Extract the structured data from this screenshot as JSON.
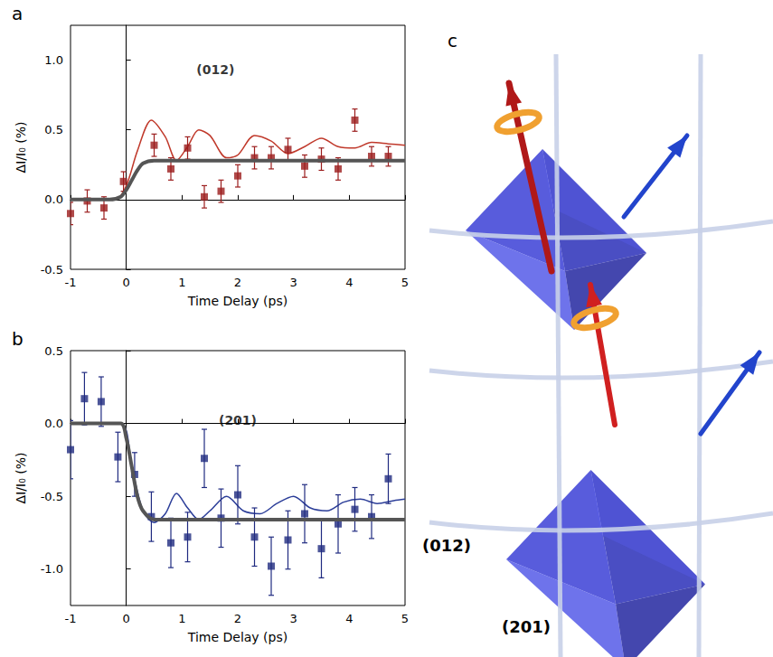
{
  "chart_data": [
    {
      "type": "scatter",
      "panel": "a",
      "x_label": "Time Delay (ps)",
      "y_label": "ΔI/I₀ (%)",
      "annotations": [
        {
          "text": "(012)",
          "x": 1.6,
          "y": 0.93
        }
      ],
      "xlim": [
        -1,
        5
      ],
      "xticks": [
        -1,
        0,
        1,
        2,
        3,
        4,
        5
      ],
      "ylim": [
        -0.5,
        1.25
      ],
      "yticks": [
        {
          "value": -0.5,
          "label": "-0.5"
        },
        {
          "value": 0,
          "label": "0.0"
        },
        {
          "value": 0.5,
          "label": "0.5"
        },
        {
          "value": 1,
          "label": "1.0"
        }
      ],
      "series": [
        {
          "type": "scatter",
          "color": "#9b1c1c",
          "marker": "square",
          "x": [
            -1.0,
            -0.7,
            -0.4,
            -0.05,
            0.5,
            0.8,
            1.1,
            1.4,
            1.7,
            2.0,
            2.3,
            2.6,
            2.9,
            3.2,
            3.5,
            3.8,
            4.1,
            4.4,
            4.7
          ],
          "values": [
            -0.1,
            -0.01,
            -0.06,
            0.13,
            0.39,
            0.22,
            0.37,
            0.02,
            0.06,
            0.17,
            0.3,
            0.3,
            0.36,
            0.24,
            0.29,
            0.22,
            0.57,
            0.31,
            0.31
          ],
          "errors": [
            0.08,
            0.08,
            0.08,
            0.07,
            0.08,
            0.08,
            0.08,
            0.08,
            0.08,
            0.08,
            0.08,
            0.08,
            0.08,
            0.08,
            0.08,
            0.08,
            0.08,
            0.07,
            0.07
          ]
        },
        {
          "type": "line",
          "color": "#c0392b",
          "line_style": "thin",
          "x": [
            -1,
            -0.2,
            0,
            0.2,
            0.45,
            0.7,
            0.9,
            1.1,
            1.3,
            1.5,
            1.8,
            2.0,
            2.3,
            2.6,
            2.9,
            3.2,
            3.5,
            3.8,
            4.1,
            4.4,
            4.7,
            5
          ],
          "values": [
            0,
            0,
            0.1,
            0.35,
            0.57,
            0.45,
            0.28,
            0.38,
            0.5,
            0.46,
            0.3,
            0.32,
            0.46,
            0.42,
            0.33,
            0.38,
            0.44,
            0.38,
            0.37,
            0.41,
            0.4,
            0.39
          ]
        },
        {
          "type": "line",
          "color": "#555555",
          "line_style": "thick",
          "x": [
            -1,
            -0.3,
            -0.1,
            0,
            0.1,
            0.2,
            0.3,
            0.5,
            5
          ],
          "values": [
            0,
            0,
            0.02,
            0.07,
            0.14,
            0.21,
            0.26,
            0.28,
            0.28
          ]
        }
      ]
    },
    {
      "type": "scatter",
      "panel": "b",
      "x_label": "Time Delay (ps)",
      "y_label": "ΔI/I₀ (%)",
      "annotations": [
        {
          "text": "(201)",
          "x": 2.0,
          "y": 0.02
        }
      ],
      "xlim": [
        -1,
        5
      ],
      "xticks": [
        -1,
        0,
        1,
        2,
        3,
        4,
        5
      ],
      "ylim": [
        -1.25,
        0.5
      ],
      "yticks": [
        {
          "value": -1,
          "label": "-1.0"
        },
        {
          "value": -0.5,
          "label": "-0.5"
        },
        {
          "value": 0,
          "label": "0.0"
        },
        {
          "value": 0.5,
          "label": "0.5"
        }
      ],
      "series": [
        {
          "type": "scatter",
          "color": "#1f2a80",
          "marker": "square",
          "x": [
            -1.0,
            -0.75,
            -0.45,
            -0.15,
            0.15,
            0.45,
            0.8,
            1.1,
            1.4,
            1.7,
            2.0,
            2.3,
            2.6,
            2.9,
            3.2,
            3.5,
            3.8,
            4.1,
            4.4,
            4.7
          ],
          "values": [
            -0.18,
            0.17,
            0.15,
            -0.23,
            -0.35,
            -0.64,
            -0.82,
            -0.78,
            -0.24,
            -0.65,
            -0.49,
            -0.78,
            -0.98,
            -0.8,
            -0.62,
            -0.86,
            -0.69,
            -0.59,
            -0.64,
            -0.38
          ],
          "errors": [
            0.2,
            0.18,
            0.17,
            0.17,
            0.15,
            0.17,
            0.17,
            0.17,
            0.2,
            0.2,
            0.2,
            0.2,
            0.2,
            0.2,
            0.2,
            0.2,
            0.2,
            0.15,
            0.15,
            0.17
          ]
        },
        {
          "type": "line",
          "color": "#2c3e99",
          "line_style": "thin",
          "x": [
            -1,
            -0.1,
            0.1,
            0.3,
            0.5,
            0.7,
            0.9,
            1.1,
            1.3,
            1.5,
            1.8,
            2.1,
            2.4,
            2.7,
            3.0,
            3.3,
            3.6,
            3.9,
            4.2,
            4.5,
            4.8,
            5
          ],
          "values": [
            0,
            0,
            -0.3,
            -0.6,
            -0.68,
            -0.62,
            -0.48,
            -0.58,
            -0.66,
            -0.6,
            -0.5,
            -0.6,
            -0.62,
            -0.55,
            -0.5,
            -0.58,
            -0.6,
            -0.54,
            -0.52,
            -0.55,
            -0.53,
            -0.52
          ]
        },
        {
          "type": "line",
          "color": "#555555",
          "line_style": "thick",
          "x": [
            -1,
            -0.1,
            0,
            0.1,
            0.2,
            0.3,
            0.5,
            5
          ],
          "values": [
            0,
            0,
            -0.1,
            -0.3,
            -0.5,
            -0.6,
            -0.66,
            -0.66
          ]
        }
      ]
    }
  ],
  "diagram": {
    "panel": "c",
    "labels": [
      "(012)",
      "(201)"
    ]
  }
}
